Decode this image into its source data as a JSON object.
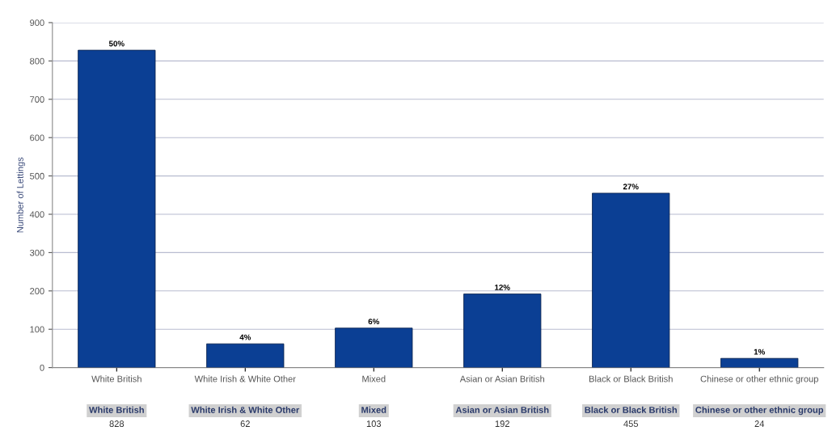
{
  "chart_data": {
    "type": "bar",
    "ylabel": "Number of Lettings",
    "categories": [
      "White British",
      "White Irish & White Other",
      "Mixed",
      "Asian or Asian British",
      "Black or Black British",
      "Chinese or other ethnic group"
    ],
    "values": [
      828,
      62,
      103,
      192,
      455,
      24
    ],
    "annotations": [
      {
        "text": "50%",
        "x": "White British",
        "y": 828
      },
      {
        "text": "4%",
        "x": "White Irish & White Other",
        "y": 62
      },
      {
        "text": "6%",
        "x": "Mixed",
        "y": 103
      },
      {
        "text": "12%",
        "x": "Asian or Asian British",
        "y": 192
      },
      {
        "text": "27%",
        "x": "Black or Black British",
        "y": 455
      },
      {
        "text": "1%",
        "x": "Chinese or other ethnic group",
        "y": 24
      }
    ],
    "color": "#0b3f94",
    "ylim": [
      0,
      900
    ],
    "yticks": [
      0,
      100,
      200,
      300,
      400,
      500,
      600,
      700,
      800,
      900
    ],
    "grid": "y",
    "data_labels": true
  }
}
